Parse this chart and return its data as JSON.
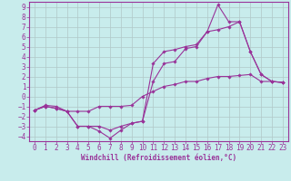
{
  "xlabel": "Windchill (Refroidissement éolien,°C)",
  "bg_color": "#c8ecec",
  "grid_color": "#b0c8c8",
  "line_color": "#993399",
  "spine_color": "#993399",
  "xlim": [
    -0.5,
    23.5
  ],
  "ylim": [
    -4.5,
    9.5
  ],
  "xticks": [
    0,
    1,
    2,
    3,
    4,
    5,
    6,
    7,
    8,
    9,
    10,
    11,
    12,
    13,
    14,
    15,
    16,
    17,
    18,
    19,
    20,
    21,
    22,
    23
  ],
  "yticks": [
    -4,
    -3,
    -2,
    -1,
    0,
    1,
    2,
    3,
    4,
    5,
    6,
    7,
    8,
    9
  ],
  "series1_x": [
    0,
    1,
    2,
    3,
    4,
    5,
    6,
    7,
    8,
    9,
    10,
    11,
    12,
    13,
    14,
    15,
    16,
    17,
    18,
    19,
    20,
    21,
    22,
    23
  ],
  "series1_y": [
    -1.4,
    -1.0,
    -1.2,
    -1.5,
    -3.0,
    -3.0,
    -3.5,
    -4.2,
    -3.4,
    -2.7,
    -2.5,
    3.3,
    4.5,
    4.7,
    5.0,
    5.2,
    6.5,
    9.2,
    7.5,
    7.5,
    4.5,
    2.2,
    1.5,
    1.4
  ],
  "series2_x": [
    0,
    1,
    2,
    3,
    4,
    5,
    6,
    7,
    8,
    9,
    10,
    11,
    12,
    13,
    14,
    15,
    16,
    17,
    18,
    19,
    20,
    21,
    22,
    23
  ],
  "series2_y": [
    -1.4,
    -1.0,
    -1.2,
    -1.5,
    -3.0,
    -3.0,
    -3.0,
    -3.4,
    -3.0,
    -2.7,
    -2.5,
    1.5,
    3.3,
    3.5,
    4.8,
    5.0,
    6.5,
    6.7,
    7.0,
    7.5,
    4.5,
    2.2,
    1.5,
    1.4
  ],
  "series3_x": [
    0,
    1,
    2,
    3,
    4,
    5,
    6,
    7,
    8,
    9,
    10,
    11,
    12,
    13,
    14,
    15,
    16,
    17,
    18,
    19,
    20,
    21,
    22,
    23
  ],
  "series3_y": [
    -1.4,
    -0.9,
    -1.0,
    -1.5,
    -1.5,
    -1.5,
    -1.0,
    -1.0,
    -1.0,
    -0.9,
    0.0,
    0.5,
    1.0,
    1.2,
    1.5,
    1.5,
    1.8,
    2.0,
    2.0,
    2.1,
    2.2,
    1.5,
    1.5,
    1.4
  ],
  "tick_fontsize": 5.5,
  "xlabel_fontsize": 5.5,
  "marker_size": 1.8,
  "line_width": 0.8
}
